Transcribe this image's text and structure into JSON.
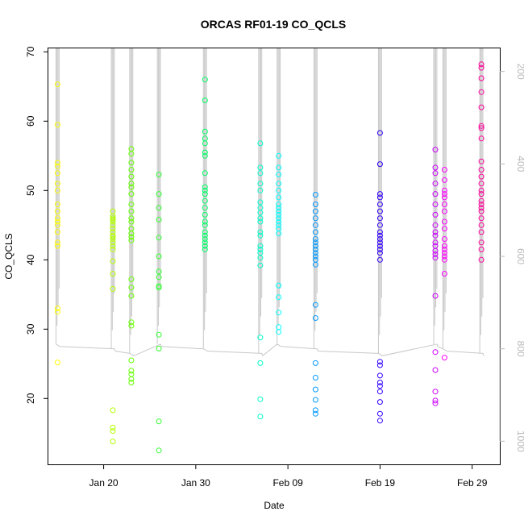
{
  "chart_data": {
    "type": "scatter",
    "title": "ORCAS RF01-19 CO_QCLS",
    "xlabel": "Date",
    "ylabel": "CO_QCLS",
    "xlim": [
      "2016-01-14",
      "2016-03-03"
    ],
    "ylim": [
      10.5,
      70.5
    ],
    "y_ticks": [
      20,
      30,
      40,
      50,
      60,
      70
    ],
    "x_ticks": [
      {
        "date": "2016-01-20",
        "label": "Jan 20"
      },
      {
        "date": "2016-01-30",
        "label": "Jan 30"
      },
      {
        "date": "2016-02-09",
        "label": "Feb 09"
      },
      {
        "date": "2016-02-19",
        "label": "Feb 19"
      },
      {
        "date": "2016-02-29",
        "label": "Feb 29"
      }
    ],
    "right_axis": {
      "description": "pressure (secondary axis, reversed)",
      "lim": [
        1050,
        150
      ],
      "ticks": [
        200,
        400,
        600,
        800,
        1000
      ],
      "color": "#b8b8b8"
    },
    "marker": "open circle",
    "pressure_trace_color": "#c8c8c8",
    "flights": [
      {
        "date": "2016-01-15",
        "color": "#ffff00",
        "values": [
          25.2,
          32.5,
          33.0,
          42.0,
          42.5,
          44.0,
          45.0,
          45.5,
          46.0,
          47.0,
          48.0,
          50.0,
          51.0,
          52.5,
          53.5,
          54.0,
          59.5,
          65.3
        ]
      },
      {
        "date": "2016-01-21",
        "color": "#b3ff00",
        "values": [
          13.8,
          15.3,
          15.8,
          18.3,
          35.8,
          38.0,
          39.8,
          41.5,
          42.0,
          42.5,
          43.0,
          43.3,
          43.5,
          44.0,
          44.5,
          45.0,
          45.5,
          45.8,
          46.0,
          46.3,
          47.0
        ]
      },
      {
        "date": "2016-01-23",
        "color": "#66ff00",
        "values": [
          22.3,
          22.8,
          23.5,
          24.0,
          25.5,
          30.5,
          31.0,
          34.8,
          36.0,
          37.2,
          42.8,
          43.3,
          43.8,
          44.5,
          45.5,
          46.0,
          47.0,
          48.0,
          49.5,
          50.5,
          51.0,
          52.0,
          53.0,
          54.0,
          55.3,
          56.0
        ]
      },
      {
        "date": "2016-01-26",
        "color": "#33ff33",
        "values": [
          12.5,
          16.7,
          27.2,
          29.2,
          36.0,
          36.2,
          37.5,
          38.3,
          40.5,
          43.2,
          45.8,
          47.5,
          49.5,
          52.3
        ]
      },
      {
        "date": "2016-01-31",
        "color": "#00ff66",
        "values": [
          41.5,
          42.0,
          42.5,
          43.0,
          43.5,
          44.0,
          45.0,
          45.5,
          46.5,
          47.5,
          48.5,
          49.5,
          50.0,
          50.5,
          52.5,
          55.0,
          55.5,
          56.8,
          57.5,
          58.5,
          63.0,
          66.0
        ]
      },
      {
        "date": "2016-02-06",
        "color": "#00ffcc",
        "values": [
          17.4,
          19.9,
          25.1,
          28.8,
          39.2,
          40.3,
          41.0,
          41.5,
          42.0,
          43.5,
          44.0,
          45.5,
          46.0,
          46.8,
          47.5,
          48.3,
          50.0,
          51.0,
          52.5,
          53.3,
          56.8
        ]
      },
      {
        "date": "2016-02-08",
        "color": "#00ffff",
        "values": [
          29.6,
          30.3,
          32.4,
          34.6,
          36.3,
          43.8,
          44.5,
          45.0,
          45.5,
          46.0,
          46.5,
          47.0,
          47.5,
          48.0,
          49.0,
          50.0,
          51.0,
          52.3,
          53.3,
          55.0
        ]
      },
      {
        "date": "2016-02-12",
        "color": "#0099ff",
        "values": [
          17.8,
          18.3,
          19.8,
          21.3,
          23.0,
          25.1,
          31.6,
          33.5,
          39.3,
          40.0,
          40.5,
          41.0,
          41.5,
          42.0,
          42.5,
          43.0,
          44.0,
          45.0,
          46.0,
          47.0,
          48.0,
          49.4
        ]
      },
      {
        "date": "2016-02-19",
        "color": "#3300ff",
        "values": [
          16.8,
          17.8,
          19.5,
          21.0,
          21.8,
          22.3,
          23.3,
          24.8,
          25.3,
          40.0,
          41.0,
          41.5,
          42.0,
          42.5,
          43.0,
          43.5,
          44.0,
          45.0,
          46.0,
          47.0,
          48.0,
          49.0,
          49.5,
          53.8,
          58.3
        ]
      },
      {
        "date": "2016-02-25",
        "color": "#cc00ff",
        "values": [
          19.3,
          19.7,
          21.0,
          24.1,
          26.7,
          34.8,
          40.3,
          40.8,
          41.3,
          42.0,
          42.5,
          43.5,
          44.0,
          45.0,
          46.5,
          48.0,
          49.5,
          51.0,
          52.5,
          53.3,
          55.9
        ]
      },
      {
        "date": "2016-02-26",
        "color": "#ff00ff",
        "values": [
          25.9,
          38.0,
          40.0,
          40.5,
          41.0,
          41.5,
          42.0,
          43.0,
          44.5,
          45.5,
          47.0,
          48.0,
          49.0,
          49.5,
          50.0,
          51.5,
          53.0
        ]
      },
      {
        "date": "2016-03-01",
        "color": "#ff0099",
        "values": [
          40.0,
          41.5,
          42.5,
          44.0,
          45.0,
          46.0,
          47.0,
          47.5,
          48.0,
          48.5,
          49.5,
          50.0,
          51.0,
          52.0,
          53.0,
          54.2,
          57.5,
          59.0,
          59.3,
          62.0,
          64.2,
          66.2,
          67.7,
          68.2
        ]
      }
    ]
  }
}
